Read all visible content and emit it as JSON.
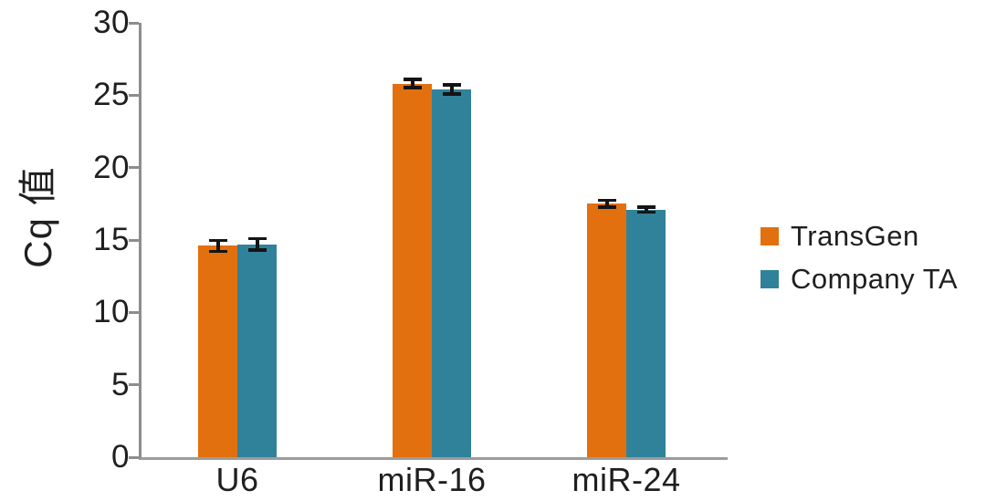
{
  "chart_data": {
    "type": "bar",
    "title": "",
    "xlabel": "",
    "ylabel": "Cq 值",
    "categories": [
      "U6",
      "miR-16",
      "miR-24"
    ],
    "series": [
      {
        "name": "TransGen",
        "color": "#E2700F",
        "values": [
          14.6,
          25.8,
          17.5
        ],
        "errors": [
          0.4,
          0.3,
          0.25
        ]
      },
      {
        "name": "Company TA",
        "color": "#2F8299",
        "values": [
          14.7,
          25.4,
          17.1
        ],
        "errors": [
          0.4,
          0.33,
          0.2
        ]
      }
    ],
    "ylim": [
      0,
      30
    ],
    "yticks": [
      0,
      5,
      10,
      15,
      20,
      25,
      30
    ],
    "grid": false,
    "legend_position": "right",
    "error_bars": true
  },
  "colors": {
    "axis": "#8d8d8d",
    "baseline": "#9c9c9c",
    "text": "#1f1f1f",
    "error_bar": "#141414",
    "background": "#ffffff"
  }
}
